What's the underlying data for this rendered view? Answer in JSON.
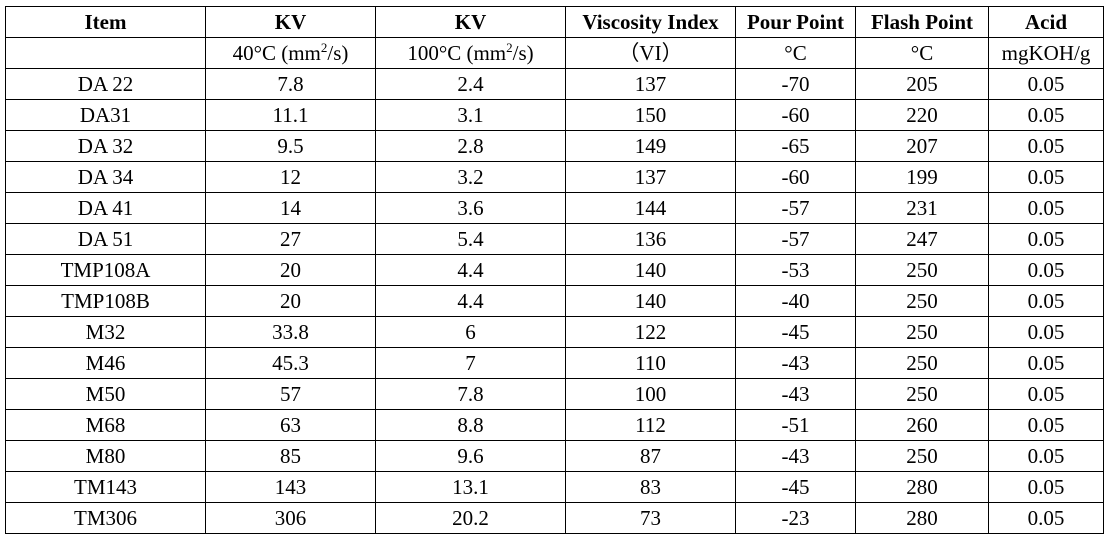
{
  "header": {
    "row1": [
      "Item",
      "KV",
      "KV",
      "Viscosity Index",
      "Pour Point",
      "Flash Point",
      "Acid"
    ],
    "row2": [
      {
        "pre": "",
        "sup": "",
        "post": ""
      },
      {
        "pre": "40°C (mm",
        "sup": "2",
        "post": "/s)"
      },
      {
        "pre": "100°C (mm",
        "sup": "2",
        "post": "/s)"
      },
      {
        "pre": "（VI）",
        "sup": "",
        "post": ""
      },
      {
        "pre": "°C",
        "sup": "",
        "post": ""
      },
      {
        "pre": "°C",
        "sup": "",
        "post": ""
      },
      {
        "pre": "mgKOH/g",
        "sup": "",
        "post": ""
      }
    ]
  },
  "rows": [
    [
      "DA 22",
      "7.8",
      "2.4",
      "137",
      "-70",
      "205",
      "0.05"
    ],
    [
      "DA31",
      "11.1",
      "3.1",
      "150",
      "-60",
      "220",
      "0.05"
    ],
    [
      "DA 32",
      "9.5",
      "2.8",
      "149",
      "-65",
      "207",
      "0.05"
    ],
    [
      "DA 34",
      "12",
      "3.2",
      "137",
      "-60",
      "199",
      "0.05"
    ],
    [
      "DA 41",
      "14",
      "3.6",
      "144",
      "-57",
      "231",
      "0.05"
    ],
    [
      "DA 51",
      "27",
      "5.4",
      "136",
      "-57",
      "247",
      "0.05"
    ],
    [
      "TMP108A",
      "20",
      "4.4",
      "140",
      "-53",
      "250",
      "0.05"
    ],
    [
      "TMP108B",
      "20",
      "4.4",
      "140",
      "-40",
      "250",
      "0.05"
    ],
    [
      "M32",
      "33.8",
      "6",
      "122",
      "-45",
      "250",
      "0.05"
    ],
    [
      "M46",
      "45.3",
      "7",
      "110",
      "-43",
      "250",
      "0.05"
    ],
    [
      "M50",
      "57",
      "7.8",
      "100",
      "-43",
      "250",
      "0.05"
    ],
    [
      "M68",
      "63",
      "8.8",
      "112",
      "-51",
      "260",
      "0.05"
    ],
    [
      "M80",
      "85",
      "9.6",
      "87",
      "-43",
      "250",
      "0.05"
    ],
    [
      "TM143",
      "143",
      "13.1",
      "83",
      "-45",
      "280",
      "0.05"
    ],
    [
      "TM306",
      "306",
      "20.2",
      "73",
      "-23",
      "280",
      "0.05"
    ]
  ]
}
